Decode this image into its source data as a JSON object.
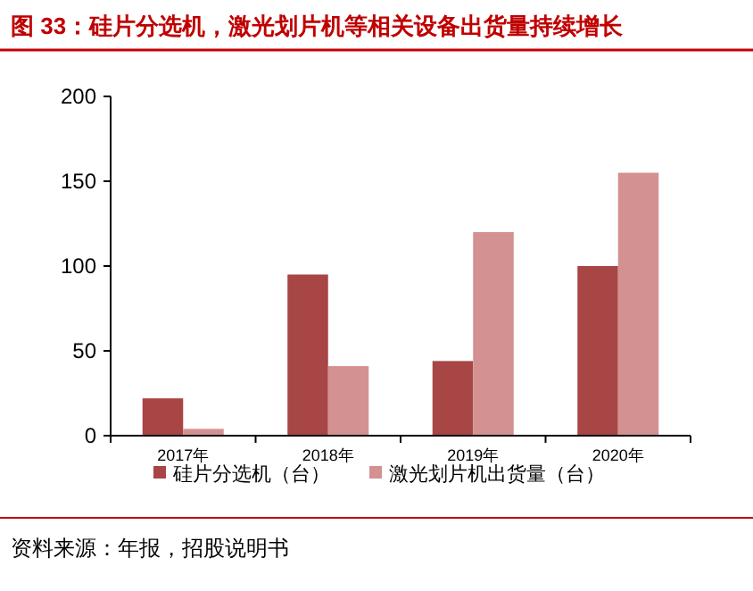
{
  "chart_data": {
    "type": "bar",
    "title": "图 33：硅片分选机，激光划片机等相关设备出货量持续增长",
    "categories": [
      "2017年",
      "2018年",
      "2019年",
      "2020年"
    ],
    "series": [
      {
        "name": "硅片分选机（台）",
        "color": "#a84545",
        "values": [
          22,
          95,
          44,
          100
        ]
      },
      {
        "name": "激光划片机出货量（台）",
        "color": "#d49191",
        "values": [
          4,
          41,
          120,
          155
        ]
      }
    ],
    "ylim": [
      0,
      200
    ],
    "yticks": [
      0,
      50,
      100,
      150,
      200
    ],
    "grid": false,
    "legend": "bottom",
    "annotations": [
      "资料来源：年报，招股说明书"
    ]
  }
}
